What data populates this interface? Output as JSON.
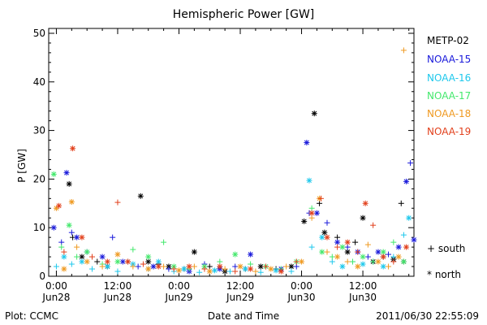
{
  "footer": {
    "plot_credit": "Plot: CCMC",
    "timestamp": "2011/06/30 22:55:09"
  },
  "legend": {
    "series": [
      {
        "name": "METP-02",
        "color": "#000000"
      },
      {
        "name": "NOAA-15",
        "color": "#1a1adb"
      },
      {
        "name": "NOAA-16",
        "color": "#1ec8ec"
      },
      {
        "name": "NOAA-17",
        "color": "#43e86c"
      },
      {
        "name": "NOAA-18",
        "color": "#ef9a22"
      },
      {
        "name": "NOAA-19",
        "color": "#e2401c"
      }
    ],
    "symbols": [
      {
        "symbol": "+",
        "label": "south"
      },
      {
        "symbol": "*",
        "label": "north"
      }
    ]
  },
  "chart_data": {
    "type": "scatter",
    "title": "Hemispheric Power [GW]",
    "xlabel": "Date and Time",
    "ylabel": "P [GW]",
    "x_unit": "hours since Jun28 00:00",
    "xlim": [
      -1.5,
      70
    ],
    "ylim": [
      0,
      51
    ],
    "y_ticks": [
      0,
      10,
      20,
      30,
      40,
      50
    ],
    "x_ticks": [
      {
        "x": 0,
        "label": [
          "0:00",
          "Jun28"
        ]
      },
      {
        "x": 12,
        "label": [
          "12:00",
          "Jun28"
        ]
      },
      {
        "x": 24,
        "label": [
          "0:00",
          "Jun29"
        ]
      },
      {
        "x": 36,
        "label": [
          "12:00",
          "Jun29"
        ]
      },
      {
        "x": 48,
        "label": [
          "0:00",
          "Jun30"
        ]
      },
      {
        "x": 60,
        "label": [
          "12:00",
          "Jun30"
        ]
      }
    ],
    "series": [
      {
        "name": "METP-02",
        "points": [
          [
            2.5,
            19,
            "*"
          ],
          [
            3.2,
            8,
            "+"
          ],
          [
            5,
            4,
            "*"
          ],
          [
            8,
            3,
            "+"
          ],
          [
            10,
            2,
            "*"
          ],
          [
            14,
            3,
            "+"
          ],
          [
            16.5,
            16.5,
            "*"
          ],
          [
            18,
            3,
            "*"
          ],
          [
            20,
            2.5,
            "+"
          ],
          [
            22,
            2,
            "*"
          ],
          [
            25,
            1.5,
            "+"
          ],
          [
            27,
            5,
            "*"
          ],
          [
            30,
            2,
            "+"
          ],
          [
            33,
            1,
            "*"
          ],
          [
            37,
            1.5,
            "+"
          ],
          [
            40,
            2,
            "*"
          ],
          [
            43,
            1.5,
            "+"
          ],
          [
            46,
            2,
            "*"
          ],
          [
            48.5,
            11.3,
            "*"
          ],
          [
            50.5,
            33.5,
            "*"
          ],
          [
            51.5,
            15,
            "+"
          ],
          [
            52.5,
            9,
            "*"
          ],
          [
            55,
            8,
            "+"
          ],
          [
            57,
            5,
            "*"
          ],
          [
            58.5,
            7,
            "+"
          ],
          [
            60,
            12,
            "*"
          ],
          [
            62,
            3,
            "*"
          ],
          [
            64,
            4,
            "+"
          ],
          [
            66,
            3.5,
            "*"
          ],
          [
            67.5,
            15,
            "+"
          ],
          [
            68,
            3,
            "*"
          ]
        ]
      },
      {
        "name": "NOAA-15",
        "points": [
          [
            -0.5,
            10,
            "*"
          ],
          [
            1,
            7,
            "+"
          ],
          [
            2,
            21.3,
            "*"
          ],
          [
            3,
            9,
            "+"
          ],
          [
            4,
            8,
            "*"
          ],
          [
            6,
            5,
            "+"
          ],
          [
            9,
            4,
            "*"
          ],
          [
            11,
            8,
            "+"
          ],
          [
            13,
            3,
            "*"
          ],
          [
            16,
            2,
            "+"
          ],
          [
            19,
            2,
            "*"
          ],
          [
            22,
            1.5,
            "+"
          ],
          [
            26,
            1,
            "*"
          ],
          [
            29,
            2.5,
            "+"
          ],
          [
            32,
            1.5,
            "*"
          ],
          [
            35,
            2,
            "+"
          ],
          [
            38,
            4.5,
            "*"
          ],
          [
            41,
            2,
            "+"
          ],
          [
            44,
            1.5,
            "*"
          ],
          [
            47,
            2,
            "+"
          ],
          [
            49,
            27.5,
            "*"
          ],
          [
            49.5,
            13,
            "+"
          ],
          [
            51,
            13,
            "*"
          ],
          [
            53,
            11,
            "+"
          ],
          [
            55,
            7,
            "*"
          ],
          [
            57,
            6,
            "+"
          ],
          [
            59,
            5,
            "*"
          ],
          [
            61,
            4,
            "+"
          ],
          [
            63,
            5,
            "*"
          ],
          [
            65,
            4.5,
            "+"
          ],
          [
            67,
            6,
            "*"
          ],
          [
            68.5,
            19.5,
            "*"
          ],
          [
            69.3,
            23.3,
            "+"
          ],
          [
            70,
            7.5,
            "*"
          ]
        ]
      },
      {
        "name": "NOAA-16",
        "points": [
          [
            0,
            2,
            "+"
          ],
          [
            1.5,
            4,
            "*"
          ],
          [
            3,
            2.5,
            "+"
          ],
          [
            5,
            3,
            "*"
          ],
          [
            7,
            1.5,
            "+"
          ],
          [
            10,
            2,
            "*"
          ],
          [
            12,
            1,
            "+"
          ],
          [
            15,
            2.5,
            "*"
          ],
          [
            18,
            1.5,
            "+"
          ],
          [
            20,
            3,
            "*"
          ],
          [
            23,
            1,
            "+"
          ],
          [
            25,
            1.5,
            "*"
          ],
          [
            28,
            0.8,
            "+"
          ],
          [
            31,
            1.2,
            "*"
          ],
          [
            34,
            1,
            "+"
          ],
          [
            37,
            1.5,
            "*"
          ],
          [
            40,
            0.8,
            "+"
          ],
          [
            43,
            1.2,
            "*"
          ],
          [
            46,
            1,
            "+"
          ],
          [
            49.5,
            19.7,
            "*"
          ],
          [
            50,
            6,
            "+"
          ],
          [
            52,
            8,
            "*"
          ],
          [
            54,
            3,
            "+"
          ],
          [
            56,
            2,
            "*"
          ],
          [
            58,
            3,
            "+"
          ],
          [
            60,
            2.5,
            "*"
          ],
          [
            62,
            3,
            "+"
          ],
          [
            64,
            2,
            "*"
          ],
          [
            66,
            4,
            "+"
          ],
          [
            68,
            8.5,
            "+"
          ],
          [
            69,
            12,
            "*"
          ]
        ]
      },
      {
        "name": "NOAA-17",
        "points": [
          [
            -0.5,
            21,
            "*"
          ],
          [
            1,
            6,
            "+"
          ],
          [
            2.5,
            10.5,
            "*"
          ],
          [
            4,
            4,
            "+"
          ],
          [
            6,
            5,
            "*"
          ],
          [
            9,
            2.5,
            "+"
          ],
          [
            12,
            3,
            "*"
          ],
          [
            15,
            5.5,
            "+"
          ],
          [
            18,
            4,
            "*"
          ],
          [
            21,
            7,
            "+"
          ],
          [
            23,
            2,
            "*"
          ],
          [
            26,
            1.5,
            "+"
          ],
          [
            29,
            2,
            "*"
          ],
          [
            32,
            3,
            "+"
          ],
          [
            35,
            4.5,
            "*"
          ],
          [
            38,
            2.5,
            "+"
          ],
          [
            41,
            2,
            "*"
          ],
          [
            44,
            1.5,
            "+"
          ],
          [
            47,
            3,
            "*"
          ],
          [
            50,
            14,
            "+"
          ],
          [
            52,
            5,
            "*"
          ],
          [
            54,
            4,
            "+"
          ],
          [
            56,
            6,
            "*"
          ],
          [
            58,
            3,
            "+"
          ],
          [
            60,
            4,
            "*"
          ],
          [
            62,
            3,
            "+"
          ],
          [
            64,
            5,
            "*"
          ],
          [
            66,
            7,
            "+"
          ],
          [
            68,
            3,
            "*"
          ]
        ]
      },
      {
        "name": "NOAA-18",
        "points": [
          [
            0,
            14,
            "*"
          ],
          [
            1.5,
            1.5,
            "*"
          ],
          [
            3,
            15.3,
            "*"
          ],
          [
            4,
            6,
            "+"
          ],
          [
            6,
            3,
            "*"
          ],
          [
            9,
            2,
            "+"
          ],
          [
            12,
            4.5,
            "*"
          ],
          [
            15,
            2,
            "+"
          ],
          [
            18,
            1.5,
            "*"
          ],
          [
            21,
            2,
            "+"
          ],
          [
            24,
            1.2,
            "*"
          ],
          [
            27,
            2,
            "+"
          ],
          [
            30,
            1,
            "*"
          ],
          [
            33,
            1.5,
            "+"
          ],
          [
            36,
            2,
            "*"
          ],
          [
            39,
            1,
            "+"
          ],
          [
            42,
            1.5,
            "*"
          ],
          [
            45,
            2,
            "+"
          ],
          [
            48,
            3,
            "*"
          ],
          [
            50,
            12,
            "+"
          ],
          [
            51.5,
            16,
            "*"
          ],
          [
            53,
            5,
            "+"
          ],
          [
            55,
            4,
            "*"
          ],
          [
            57,
            3,
            "+"
          ],
          [
            59,
            2,
            "*"
          ],
          [
            61,
            6.5,
            "+"
          ],
          [
            63,
            3,
            "*"
          ],
          [
            65,
            2,
            "+"
          ],
          [
            67,
            4,
            "*"
          ],
          [
            68,
            46.5,
            "+"
          ]
        ]
      },
      {
        "name": "NOAA-19",
        "points": [
          [
            0.5,
            14.5,
            "*"
          ],
          [
            1.5,
            5,
            "+"
          ],
          [
            3.2,
            26.3,
            "*"
          ],
          [
            5,
            8,
            "*"
          ],
          [
            7,
            4,
            "+"
          ],
          [
            10,
            3,
            "*"
          ],
          [
            12,
            15.2,
            "+"
          ],
          [
            14,
            3,
            "*"
          ],
          [
            17,
            2.5,
            "+"
          ],
          [
            20,
            2,
            "*"
          ],
          [
            23,
            1.5,
            "+"
          ],
          [
            26,
            2,
            "*"
          ],
          [
            29,
            1.5,
            "+"
          ],
          [
            32,
            2,
            "*"
          ],
          [
            35,
            1,
            "+"
          ],
          [
            38,
            1.5,
            "*"
          ],
          [
            41,
            2,
            "+"
          ],
          [
            44,
            1,
            "*"
          ],
          [
            47,
            3,
            "+"
          ],
          [
            50,
            13,
            "*"
          ],
          [
            51.8,
            16,
            "+"
          ],
          [
            53,
            8,
            "*"
          ],
          [
            55,
            6,
            "+"
          ],
          [
            57,
            7,
            "*"
          ],
          [
            59,
            5,
            "+"
          ],
          [
            60.5,
            15,
            "*"
          ],
          [
            62,
            10.5,
            "+"
          ],
          [
            64,
            4,
            "*"
          ],
          [
            66,
            3,
            "+"
          ],
          [
            68.5,
            6,
            "*"
          ]
        ]
      }
    ]
  }
}
